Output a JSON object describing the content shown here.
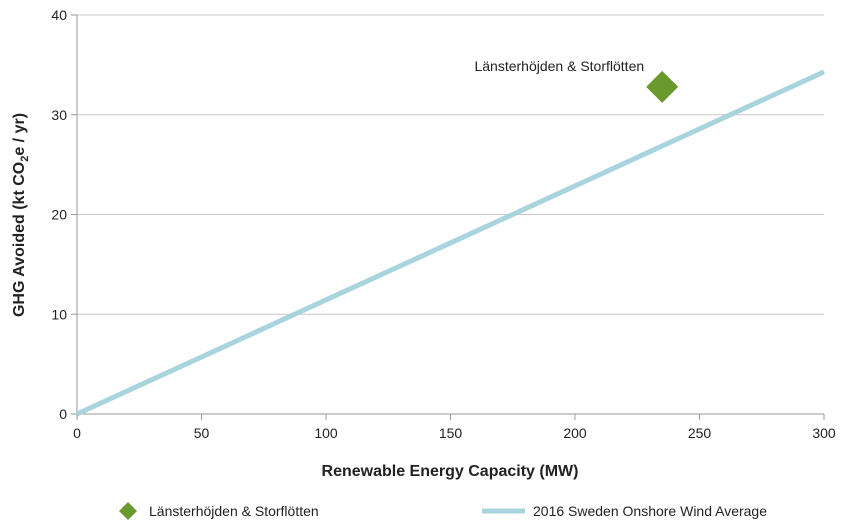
{
  "chart_data": {
    "type": "scatter",
    "xlabel": "Renewable Energy Capacity (MW)",
    "ylabel": {
      "prefix": "GHG Avoided (kt CO",
      "subscript": "2",
      "suffix": "e / yr)"
    },
    "xlim": [
      0,
      300
    ],
    "ylim": [
      0,
      40
    ],
    "xticks": [
      0,
      50,
      100,
      150,
      200,
      250,
      300
    ],
    "yticks": [
      0,
      10,
      20,
      30,
      40
    ],
    "grid": true,
    "legend_position": "bottom",
    "series": [
      {
        "name": "Länsterhöjden & Storflötten",
        "kind": "point",
        "marker": "diamond",
        "color": "#6a9a2e",
        "points": [
          {
            "x": 235,
            "y": 32.8
          }
        ],
        "annotation": "Länsterhöjden & Storflötten"
      },
      {
        "name": "2016 Sweden Onshore Wind Average",
        "kind": "line",
        "color": "#a8d4de",
        "points": [
          {
            "x": 0,
            "y": 0
          },
          {
            "x": 300,
            "y": 34.3
          }
        ]
      }
    ]
  }
}
